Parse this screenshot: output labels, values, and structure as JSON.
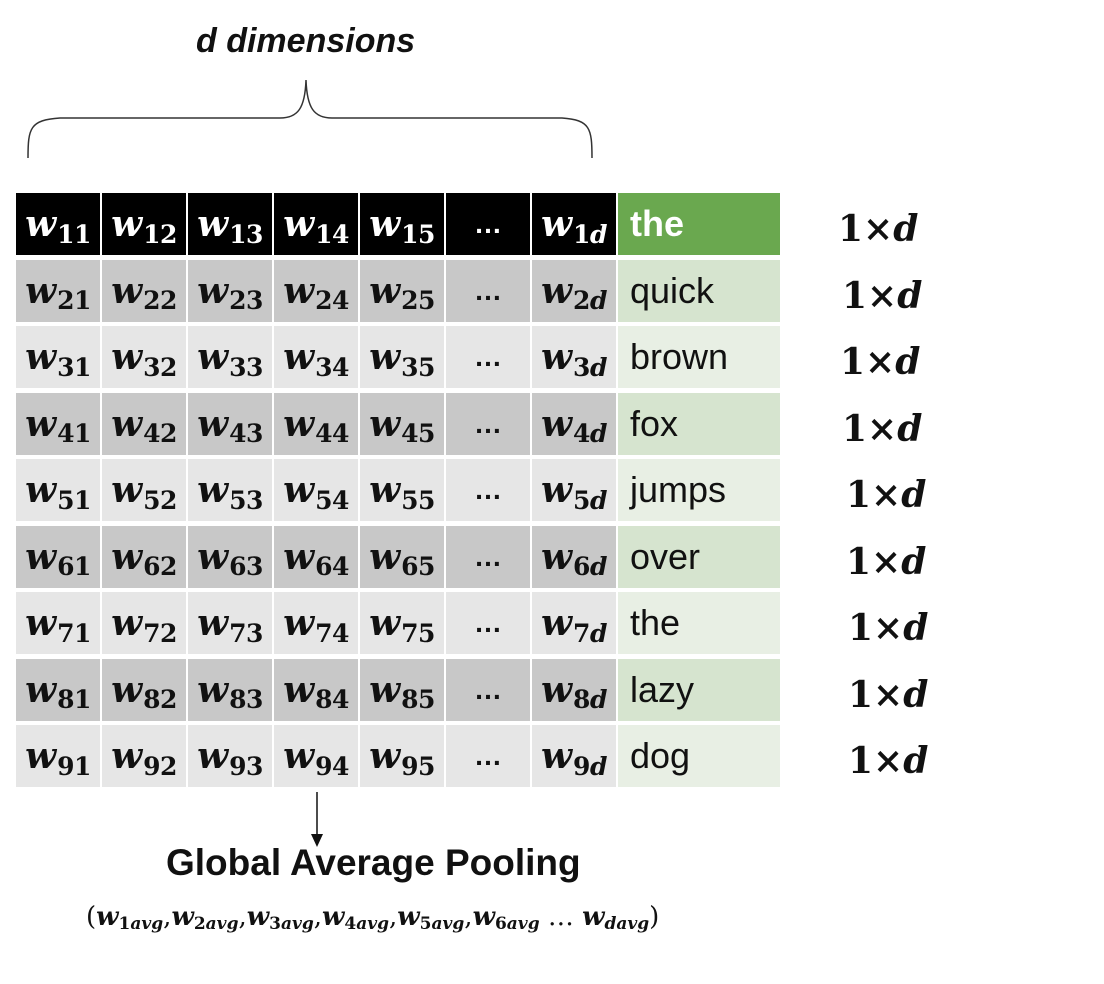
{
  "title": "d dimensions",
  "header_word": "the",
  "rows": [
    {
      "cells": [
        [
          "w",
          "11"
        ],
        [
          "w",
          "12"
        ],
        [
          "w",
          "13"
        ],
        [
          "w",
          "14"
        ],
        [
          "w",
          "15"
        ],
        [
          "…",
          ""
        ],
        [
          "w",
          "1d"
        ]
      ],
      "word": "the",
      "dim": "1×d"
    },
    {
      "cells": [
        [
          "w",
          "21"
        ],
        [
          "w",
          "22"
        ],
        [
          "w",
          "23"
        ],
        [
          "w",
          "24"
        ],
        [
          "w",
          "25"
        ],
        [
          "…",
          ""
        ],
        [
          "w",
          "2d"
        ]
      ],
      "word": "quick",
      "dim": "1×d"
    },
    {
      "cells": [
        [
          "w",
          "31"
        ],
        [
          "w",
          "32"
        ],
        [
          "w",
          "33"
        ],
        [
          "w",
          "34"
        ],
        [
          "w",
          "35"
        ],
        [
          "…",
          ""
        ],
        [
          "w",
          "3d"
        ]
      ],
      "word": "brown",
      "dim": "1×d"
    },
    {
      "cells": [
        [
          "w",
          "41"
        ],
        [
          "w",
          "42"
        ],
        [
          "w",
          "43"
        ],
        [
          "w",
          "44"
        ],
        [
          "w",
          "45"
        ],
        [
          "…",
          ""
        ],
        [
          "w",
          "4d"
        ]
      ],
      "word": "fox",
      "dim": "1×d"
    },
    {
      "cells": [
        [
          "w",
          "51"
        ],
        [
          "w",
          "52"
        ],
        [
          "w",
          "53"
        ],
        [
          "w",
          "54"
        ],
        [
          "w",
          "55"
        ],
        [
          "…",
          ""
        ],
        [
          "w",
          "5d"
        ]
      ],
      "word": "jumps",
      "dim": "1×d"
    },
    {
      "cells": [
        [
          "w",
          "61"
        ],
        [
          "w",
          "62"
        ],
        [
          "w",
          "63"
        ],
        [
          "w",
          "64"
        ],
        [
          "w",
          "65"
        ],
        [
          "…",
          ""
        ],
        [
          "w",
          "6d"
        ]
      ],
      "word": "over",
      "dim": "1×d"
    },
    {
      "cells": [
        [
          "w",
          "71"
        ],
        [
          "w",
          "72"
        ],
        [
          "w",
          "73"
        ],
        [
          "w",
          "74"
        ],
        [
          "w",
          "75"
        ],
        [
          "…",
          ""
        ],
        [
          "w",
          "7d"
        ]
      ],
      "word": "the",
      "dim": "1×d"
    },
    {
      "cells": [
        [
          "w",
          "81"
        ],
        [
          "w",
          "82"
        ],
        [
          "w",
          "83"
        ],
        [
          "w",
          "84"
        ],
        [
          "w",
          "85"
        ],
        [
          "…",
          ""
        ],
        [
          "w",
          "8d"
        ]
      ],
      "word": "lazy",
      "dim": "1×d"
    },
    {
      "cells": [
        [
          "w",
          "91"
        ],
        [
          "w",
          "92"
        ],
        [
          "w",
          "93"
        ],
        [
          "w",
          "94"
        ],
        [
          "w",
          "95"
        ],
        [
          "…",
          ""
        ],
        [
          "w",
          "9d"
        ]
      ],
      "word": "dog",
      "dim": "1×d"
    }
  ],
  "pooling_label": "Global Average Pooling",
  "pooling_formula": [
    [
      "w",
      "1avg"
    ],
    [
      "w",
      "2avg"
    ],
    [
      "w",
      "3avg"
    ],
    [
      "w",
      "4avg"
    ],
    [
      "w",
      "5avg"
    ],
    [
      "w",
      "6avg"
    ],
    [
      "…",
      ""
    ],
    [
      "w",
      "davg"
    ]
  ],
  "colors": {
    "header_bg": "#000000",
    "word_header_bg": "#6aa84f",
    "row_dark": "#c8c8c8",
    "row_light": "#e6e6e6"
  }
}
